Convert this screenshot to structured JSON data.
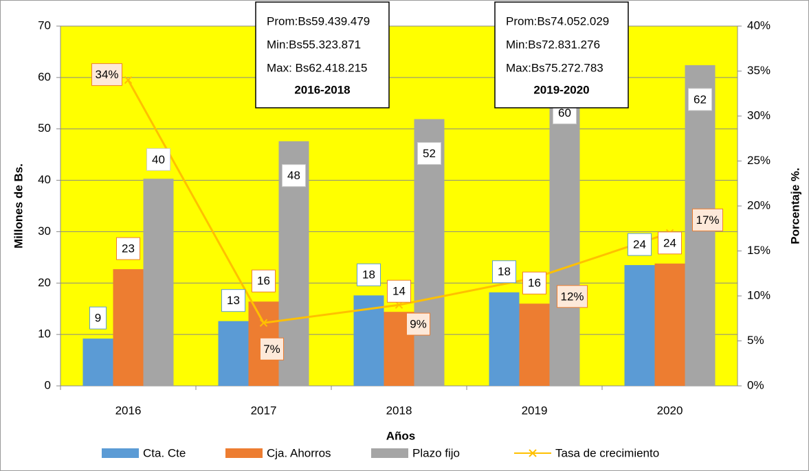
{
  "chart_data": {
    "type": "bar",
    "categories": [
      "2016",
      "2017",
      "2018",
      "2019",
      "2020"
    ],
    "series": [
      {
        "name": "Cta. Cte",
        "color": "#5b9bd5",
        "values": [
          9.2,
          12.6,
          17.6,
          18.2,
          23.5
        ],
        "value_labels": [
          "9",
          "13",
          "18",
          "18",
          "24"
        ]
      },
      {
        "name": "Cja. Ahorros",
        "color": "#ed7d31",
        "values": [
          22.7,
          16.4,
          14.4,
          16.0,
          23.8
        ],
        "value_labels": [
          "23",
          "16",
          "14",
          "16",
          "24"
        ]
      },
      {
        "name": "Plazo fijo",
        "color": "#a5a5a5",
        "values": [
          40.3,
          47.6,
          51.9,
          59.8,
          62.4
        ],
        "value_labels": [
          "40",
          "48",
          "52",
          "60",
          "62"
        ]
      },
      {
        "name": "Tasa de crecimiento",
        "color": "#ffc000",
        "type": "line",
        "axis": "y2",
        "values": [
          34,
          7,
          9,
          12,
          17
        ],
        "value_labels": [
          "34%",
          "7%",
          "9%",
          "12%",
          "17%"
        ]
      }
    ],
    "xlabel": "Años",
    "ylabel": "Millones de Bs.",
    "y2label": "Porcentaje %.",
    "ylim": [
      0,
      70
    ],
    "yticks": [
      0,
      10,
      20,
      30,
      40,
      50,
      60,
      70
    ],
    "y2lim": [
      0,
      40
    ],
    "y2ticks": [
      {
        "value": 0,
        "label": "0%"
      },
      {
        "value": 5,
        "label": "5%"
      },
      {
        "value": 10,
        "label": "10%"
      },
      {
        "value": 15,
        "label": "15%"
      },
      {
        "value": 20,
        "label": "20%"
      },
      {
        "value": 25,
        "label": "25%"
      },
      {
        "value": 30,
        "label": "30%"
      },
      {
        "value": 35,
        "label": "35%"
      },
      {
        "value": 40,
        "label": "40%"
      }
    ],
    "grid": true,
    "legend": "bottom",
    "background": "#ffff00",
    "annotations": [
      {
        "lines": [
          "Prom:Bs59.439.479",
          "Min:Bs55.323.871",
          "Max: Bs62.418.215"
        ],
        "title": "2016-2018"
      },
      {
        "lines": [
          "Prom:Bs74.052.029",
          "Min:Bs72.831.276",
          "Max:Bs75.272.783"
        ],
        "title": "2019-2020"
      }
    ]
  }
}
